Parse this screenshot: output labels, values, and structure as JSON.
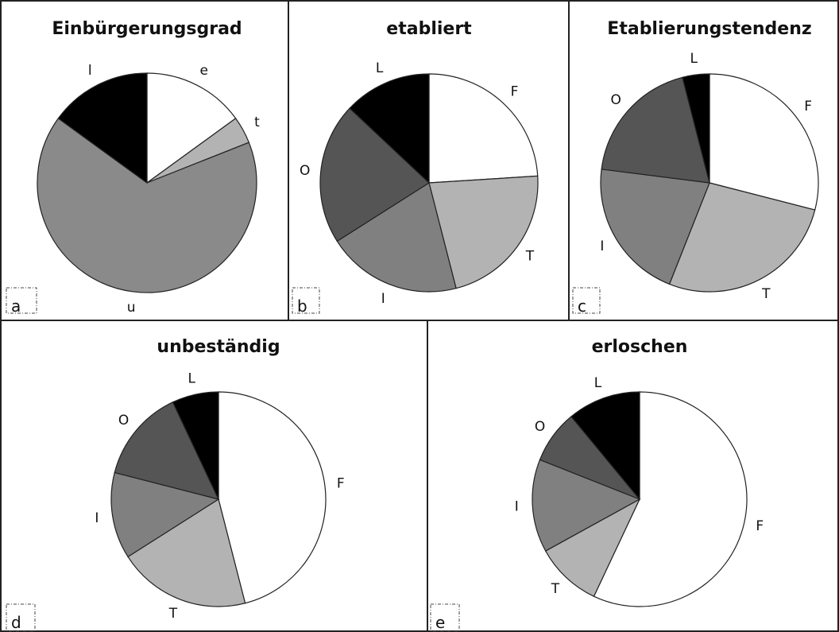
{
  "colors": {
    "F": "#ffffff",
    "T": "#b3b3b3",
    "I": "#808080",
    "O": "#555555",
    "L": "#000000",
    "e": "#ffffff",
    "t": "#b3b3b3",
    "u": "#8a8a8a",
    "l": "#000000"
  },
  "chart_data": [
    {
      "type": "pie",
      "panel": "a",
      "title": "Einbürgerungsgrad",
      "start": "12 o'clock, clockwise",
      "slices": [
        {
          "label": "e",
          "value": 15
        },
        {
          "label": "t",
          "value": 4
        },
        {
          "label": "u",
          "value": 66
        },
        {
          "label": "l",
          "value": 15,
          "display": "l"
        }
      ]
    },
    {
      "type": "pie",
      "panel": "b",
      "title": "etabliert",
      "start": "12 o'clock, clockwise",
      "slices": [
        {
          "label": "F",
          "value": 24
        },
        {
          "label": "T",
          "value": 22
        },
        {
          "label": "I",
          "value": 20,
          "display": "I"
        },
        {
          "label": "O",
          "value": 21
        },
        {
          "label": "L",
          "value": 13
        }
      ]
    },
    {
      "type": "pie",
      "panel": "c",
      "title": "Etablierungstendenz",
      "start": "12 o'clock, clockwise",
      "slices": [
        {
          "label": "F",
          "value": 29
        },
        {
          "label": "T",
          "value": 27
        },
        {
          "label": "I",
          "value": 21,
          "display": "I"
        },
        {
          "label": "O",
          "value": 19
        },
        {
          "label": "L",
          "value": 4
        }
      ]
    },
    {
      "type": "pie",
      "panel": "d",
      "title": "unbeständig",
      "start": "12 o'clock, clockwise",
      "slices": [
        {
          "label": "F",
          "value": 46
        },
        {
          "label": "T",
          "value": 20
        },
        {
          "label": "I",
          "value": 13,
          "display": "I"
        },
        {
          "label": "O",
          "value": 14
        },
        {
          "label": "L",
          "value": 7
        }
      ]
    },
    {
      "type": "pie",
      "panel": "e",
      "title": "erloschen",
      "start": "12 o'clock, clockwise",
      "slices": [
        {
          "label": "F",
          "value": 57
        },
        {
          "label": "T",
          "value": 10
        },
        {
          "label": "I",
          "value": 14,
          "display": "I"
        },
        {
          "label": "O",
          "value": 8
        },
        {
          "label": "L",
          "value": 11
        }
      ]
    }
  ]
}
